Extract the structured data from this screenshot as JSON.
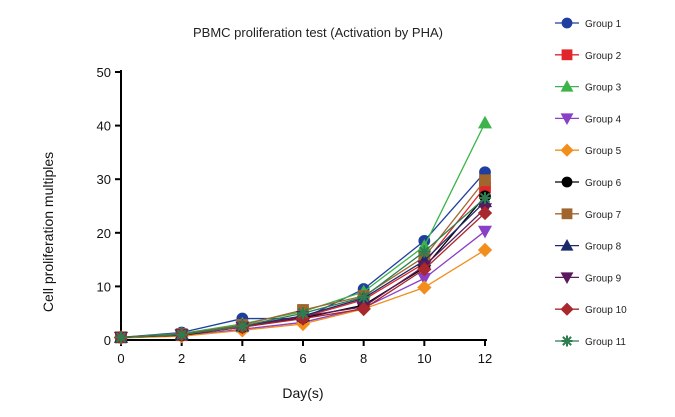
{
  "chart_data": {
    "type": "line",
    "title": "PBMC proliferation test (Activation by PHA)",
    "xlabel": "Day(s)",
    "ylabel": "Cell proliferation multiples",
    "xlim": [
      0,
      12
    ],
    "ylim": [
      0,
      50
    ],
    "xticks": [
      0,
      2,
      4,
      6,
      8,
      10,
      12
    ],
    "yticks": [
      0,
      10,
      20,
      30,
      40,
      50
    ],
    "grid": false,
    "legend": "right",
    "x": [
      0,
      2,
      4,
      6,
      8,
      10,
      12
    ],
    "series": [
      {
        "name": "Group 1",
        "color": "#1f3f9e",
        "marker": "circle",
        "values": [
          0.5,
          1.4,
          4.0,
          4.0,
          9.5,
          18.5,
          31.3
        ]
      },
      {
        "name": "Group 2",
        "color": "#e0262b",
        "marker": "square",
        "values": [
          0.5,
          0.9,
          2.5,
          4.3,
          7.5,
          14.3,
          28.5
        ]
      },
      {
        "name": "Group 3",
        "color": "#3cb44b",
        "marker": "triangle-up",
        "values": [
          0.5,
          1.2,
          3.0,
          5.3,
          9.0,
          17.5,
          40.5
        ]
      },
      {
        "name": "Group 4",
        "color": "#8a3fc7",
        "marker": "triangle-down",
        "values": [
          0.5,
          0.8,
          2.0,
          3.3,
          6.0,
          11.5,
          20.3
        ]
      },
      {
        "name": "Group 5",
        "color": "#f28e1c",
        "marker": "diamond",
        "values": [
          0.4,
          0.7,
          1.8,
          3.0,
          5.8,
          9.8,
          16.8
        ]
      },
      {
        "name": "Group 6",
        "color": "#000000",
        "marker": "circle",
        "values": [
          0.5,
          0.9,
          2.4,
          4.1,
          6.5,
          13.5,
          26.8
        ]
      },
      {
        "name": "Group 7",
        "color": "#a0662d",
        "marker": "square",
        "values": [
          0.5,
          1.1,
          2.8,
          5.6,
          8.2,
          15.5,
          29.8
        ]
      },
      {
        "name": "Group 8",
        "color": "#1c2a6b",
        "marker": "triangle-up",
        "values": [
          0.5,
          1.0,
          2.6,
          4.5,
          7.8,
          14.8,
          25.8
        ]
      },
      {
        "name": "Group 9",
        "color": "#5b1a5e",
        "marker": "triangle-down",
        "values": [
          0.5,
          1.0,
          2.4,
          4.4,
          6.2,
          13.8,
          24.5
        ]
      },
      {
        "name": "Group 10",
        "color": "#a8282d",
        "marker": "diamond",
        "values": [
          0.5,
          1.0,
          2.4,
          4.0,
          5.8,
          13.2,
          23.7
        ]
      },
      {
        "name": "Group 11",
        "color": "#2e7d4f",
        "marker": "star",
        "values": [
          0.5,
          1.0,
          2.6,
          5.0,
          8.0,
          16.5,
          26.5
        ]
      }
    ]
  }
}
